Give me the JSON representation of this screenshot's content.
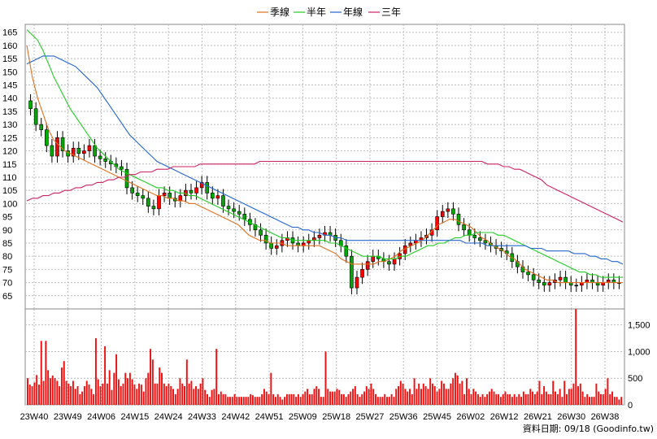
{
  "chart_data": [
    {
      "type": "candlestick",
      "legend": [
        {
          "name": "季線",
          "color": "#e07020"
        },
        {
          "name": "半年",
          "color": "#22cc22"
        },
        {
          "name": "年線",
          "color": "#2266cc"
        },
        {
          "name": "三年",
          "color": "#cc2266"
        }
      ],
      "ylim": [
        60,
        168
      ],
      "yticks": [
        65,
        70,
        75,
        80,
        85,
        90,
        95,
        100,
        105,
        110,
        115,
        120,
        125,
        130,
        135,
        140,
        145,
        150,
        155,
        160,
        165
      ],
      "grid": true,
      "colors": {
        "up": "#ff0000",
        "down": "#00aa00",
        "mixed": "#000000"
      },
      "candles_weekly_close_approx": [
        136,
        130,
        128,
        122,
        118,
        125,
        120,
        118,
        121,
        119,
        120,
        122,
        118,
        117,
        116,
        115,
        114,
        113,
        106,
        104,
        103,
        102,
        99,
        98,
        103,
        104,
        102,
        101,
        103,
        105,
        104,
        106,
        108,
        104,
        102,
        103,
        99,
        98,
        97,
        96,
        94,
        92,
        90,
        88,
        85,
        83,
        84,
        86,
        87,
        85,
        84,
        85,
        86,
        87,
        88,
        89,
        88,
        86,
        84,
        80,
        68,
        72,
        75,
        78,
        80,
        79,
        78,
        77,
        79,
        81,
        84,
        85,
        86,
        87,
        88,
        90,
        95,
        97,
        98,
        96,
        92,
        90,
        88,
        87,
        86,
        85,
        84,
        83,
        82,
        81,
        78,
        76,
        74,
        73,
        71,
        70,
        69,
        70,
        71,
        72,
        70,
        69,
        69,
        70,
        71,
        70,
        69,
        70,
        71,
        70,
        70
      ],
      "series": [
        {
          "name": "季線",
          "values": [
            160,
            148,
            140,
            134,
            128,
            124,
            122,
            120,
            119,
            118,
            117,
            116,
            115,
            114,
            113,
            112,
            111,
            110,
            109,
            108,
            107,
            106,
            105,
            104,
            103,
            103,
            102,
            102,
            101,
            101,
            100,
            100,
            99,
            98,
            97,
            96,
            95,
            94,
            93,
            92,
            90,
            88,
            87,
            86,
            86,
            85,
            85,
            85,
            84,
            84,
            84,
            84,
            84,
            84,
            84,
            83,
            82,
            81,
            79,
            78,
            77,
            77,
            77,
            77,
            77,
            78,
            78,
            79,
            80,
            82,
            83,
            84,
            85,
            86,
            88,
            90,
            92,
            93,
            94,
            94,
            93,
            92,
            91,
            89,
            87,
            86,
            84,
            83,
            82,
            80,
            79,
            77,
            75,
            74,
            73,
            72,
            71,
            71,
            70,
            70,
            70,
            70,
            70,
            70,
            70,
            70,
            70,
            70,
            70,
            70,
            70
          ]
        },
        {
          "name": "半年",
          "values": [
            166,
            164,
            162,
            158,
            153,
            148,
            144,
            140,
            136,
            133,
            130,
            127,
            124,
            121,
            119,
            117,
            115,
            113,
            112,
            111,
            110,
            109,
            108,
            107,
            106,
            106,
            105,
            105,
            104,
            104,
            103,
            103,
            102,
            101,
            100,
            99,
            98,
            97,
            96,
            95,
            94,
            93,
            92,
            91,
            90,
            89,
            88,
            87,
            87,
            86,
            86,
            86,
            86,
            86,
            86,
            86,
            85,
            85,
            84,
            83,
            82,
            81,
            80,
            80,
            80,
            80,
            79,
            79,
            79,
            80,
            80,
            81,
            82,
            83,
            84,
            84,
            85,
            85,
            86,
            87,
            87,
            88,
            88,
            89,
            89,
            89,
            89,
            88,
            88,
            87,
            86,
            85,
            84,
            83,
            82,
            81,
            80,
            79,
            78,
            77,
            76,
            75,
            74,
            74,
            73,
            73,
            72,
            72,
            72,
            72,
            72
          ]
        },
        {
          "name": "年線",
          "values": [
            153,
            154,
            155,
            156,
            156,
            156,
            155,
            154,
            153,
            152,
            150,
            148,
            146,
            144,
            141,
            138,
            135,
            132,
            129,
            126,
            124,
            122,
            120,
            118,
            116,
            115,
            114,
            113,
            112,
            111,
            110,
            109,
            108,
            107,
            106,
            105,
            104,
            103,
            102,
            101,
            100,
            99,
            98,
            97,
            96,
            95,
            94,
            93,
            92,
            91,
            91,
            90,
            90,
            89,
            89,
            88,
            88,
            87,
            87,
            86,
            86,
            86,
            86,
            86,
            86,
            86,
            86,
            86,
            86,
            86,
            86,
            86,
            86,
            86,
            86,
            86,
            86,
            86,
            86,
            86,
            86,
            85,
            85,
            85,
            85,
            84,
            84,
            84,
            84,
            84,
            84,
            84,
            84,
            83,
            83,
            83,
            82,
            82,
            82,
            82,
            82,
            81,
            81,
            81,
            80,
            80,
            79,
            79,
            78,
            78,
            77
          ]
        },
        {
          "name": "三年",
          "values": [
            101,
            102,
            102,
            103,
            103,
            104,
            104,
            105,
            105,
            106,
            106,
            107,
            107,
            108,
            108,
            109,
            109,
            110,
            110,
            111,
            111,
            112,
            112,
            112,
            113,
            113,
            113,
            114,
            114,
            114,
            114,
            114,
            115,
            115,
            115,
            115,
            115,
            115,
            115,
            115,
            115,
            115,
            115,
            116,
            116,
            116,
            116,
            116,
            116,
            116,
            116,
            116,
            116,
            116,
            116,
            116,
            116,
            116,
            116,
            116,
            116,
            116,
            116,
            116,
            116,
            116,
            116,
            116,
            116,
            116,
            116,
            116,
            116,
            116,
            116,
            116,
            116,
            116,
            116,
            116,
            116,
            116,
            116,
            116,
            116,
            115,
            115,
            115,
            114,
            114,
            113,
            113,
            112,
            111,
            110,
            109,
            107,
            106,
            105,
            104,
            103,
            102,
            101,
            100,
            99,
            98,
            97,
            96,
            95,
            94,
            93
          ]
        }
      ]
    },
    {
      "type": "bar",
      "ylim": [
        0,
        1800
      ],
      "yticks": [
        0,
        500,
        1000,
        1500
      ],
      "ytick_labels": [
        "0",
        "500",
        "1,000",
        "1,500"
      ],
      "grid": true,
      "values": [
        500,
        380,
        350,
        420,
        560,
        380,
        1200,
        450,
        1200,
        650,
        500,
        550,
        500,
        450,
        350,
        700,
        820,
        450,
        400,
        350,
        450,
        300,
        350,
        200,
        250,
        350,
        450,
        380,
        300,
        200,
        1250,
        480,
        350,
        400,
        1100,
        400,
        650,
        280,
        600,
        950,
        480,
        350,
        400,
        600,
        500,
        600,
        480,
        380,
        300,
        400,
        380,
        250,
        500,
        600,
        1050,
        850,
        400,
        400,
        700,
        600,
        400,
        350,
        400,
        350,
        300,
        200,
        300,
        500,
        400,
        350,
        850,
        400,
        450,
        300,
        350,
        300,
        400,
        500,
        280,
        200,
        150,
        280,
        300,
        1050,
        200,
        250,
        200,
        200,
        150,
        150,
        150,
        200,
        150,
        150,
        150,
        150,
        150,
        150,
        200,
        180,
        150,
        150,
        150,
        200,
        300,
        250,
        200,
        600,
        200,
        150,
        200,
        150,
        100,
        150,
        200,
        200,
        200,
        200,
        150,
        200,
        150,
        200,
        250,
        300,
        200,
        200,
        300,
        350,
        300,
        150,
        150,
        1000,
        300,
        250,
        250,
        250,
        300,
        280,
        200,
        200,
        150,
        200,
        250,
        300,
        350,
        200,
        150,
        200,
        250,
        350,
        300,
        400,
        300,
        200,
        150,
        150,
        150,
        200,
        150,
        150,
        200,
        150,
        300,
        350,
        450,
        400,
        300,
        250,
        300,
        200,
        500,
        300,
        400,
        300,
        400,
        350,
        300,
        500,
        400,
        350,
        250,
        300,
        450,
        400,
        300,
        300,
        400,
        500,
        600,
        550,
        400,
        450,
        200,
        500,
        300,
        200,
        300,
        250,
        200,
        150,
        200,
        150,
        200,
        250,
        300,
        250,
        200,
        200,
        150,
        200,
        250,
        200,
        200,
        150,
        200,
        150,
        200,
        150,
        250,
        200,
        200,
        300,
        250,
        200,
        250,
        450,
        200,
        350,
        250,
        200,
        200,
        450,
        250,
        200,
        300,
        150,
        450,
        200,
        300,
        300,
        400,
        1800,
        350,
        400,
        250,
        150,
        200,
        150,
        150,
        150,
        400,
        250,
        200,
        200,
        300,
        500,
        200,
        250,
        150,
        150,
        100,
        150
      ]
    }
  ],
  "xticks": [
    "23W40",
    "23W49",
    "24W06",
    "24W15",
    "24W24",
    "24W33",
    "24W42",
    "24W51",
    "25W09",
    "25W18",
    "25W27",
    "25W36",
    "25W45",
    "26W02",
    "26W12",
    "26W21",
    "26W30",
    "26W38"
  ],
  "footer": "資料日期: 09/18 (Goodinfo.tw)"
}
